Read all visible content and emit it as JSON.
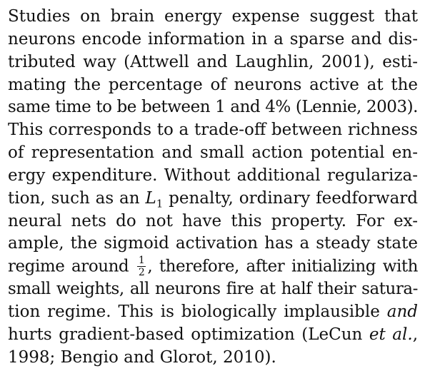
{
  "paragraph": {
    "lines": [
      {
        "text": "Studies on brain energy expense suggest that"
      },
      {
        "text": "neurons encode information in a sparse and dis-"
      },
      {
        "text": "tributed way (Attwell and Laughlin, 2001), esti-"
      },
      {
        "text": "mating the percentage of neurons active at the"
      },
      {
        "text": "same time to be between 1 and 4% (Lennie, 2003)."
      },
      {
        "text": "This corresponds to a trade-off between richness"
      },
      {
        "text": "of representation and small action potential en-"
      },
      {
        "text": "ergy expenditure. Without additional regulariza-"
      },
      {
        "before": "tion, such as an ",
        "math_var": "L",
        "math_sub": "1",
        "after": " penalty, ordinary feedforward"
      },
      {
        "text": "neural nets do not have this property.  For ex-"
      },
      {
        "text": "ample, the sigmoid activation has a steady state"
      },
      {
        "before": "regime around ",
        "frac_num": "1",
        "frac_den": "2",
        "after": ", therefore, after initializing with"
      },
      {
        "text": "small weights, all neurons fire at half their satura-"
      },
      {
        "before": "tion regime. This is biologically implausible ",
        "em": "and"
      },
      {
        "before": "hurts gradient-based optimization (LeCun ",
        "em": "et al.",
        "after": ","
      },
      {
        "text": "1998; Bengio and Glorot, 2010)."
      }
    ]
  }
}
